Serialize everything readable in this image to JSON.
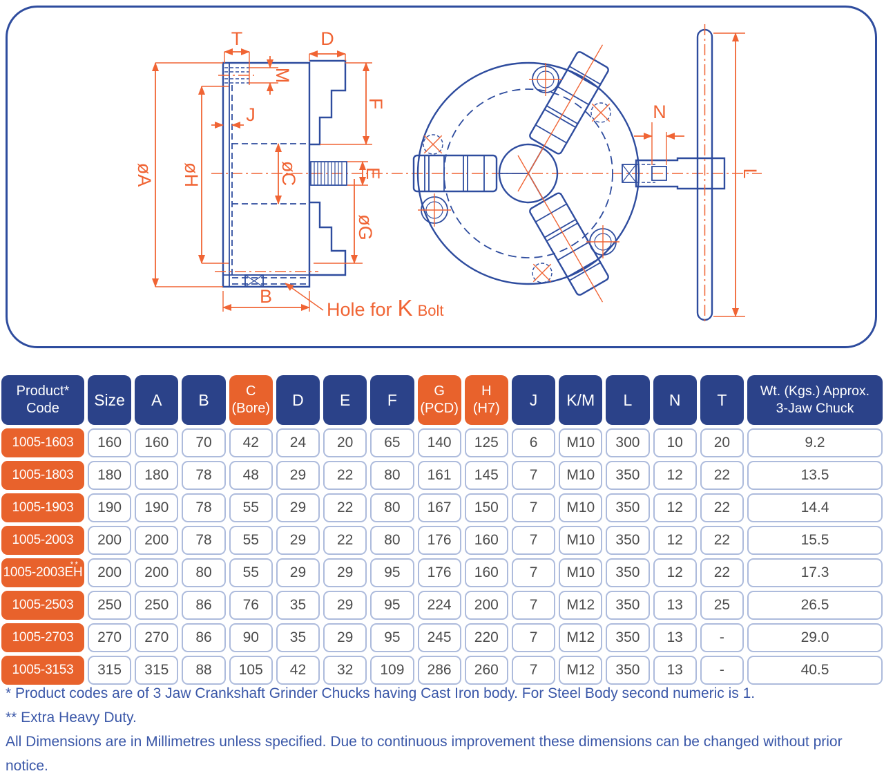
{
  "drawing": {
    "line_color": "#2e4c9e",
    "dimension_color": "#f06434",
    "labels": {
      "t": "T",
      "d": "D",
      "m": "M",
      "f": "F",
      "j": "J",
      "dia_a": "øA",
      "dia_h": "øH",
      "dia_c": "øC",
      "e": "E",
      "dia_g": "øG",
      "b": "B",
      "n": "N",
      "l": "L"
    },
    "annotation": {
      "prefix": "Hole for",
      "bolt_letter": "K",
      "suffix": "Bolt"
    }
  },
  "table": {
    "colors": {
      "header_navy": "#2b4289",
      "accent_orange": "#e8622c",
      "cell_border": "#adbbdc",
      "cell_text": "#4b4b4b"
    },
    "columns": [
      {
        "key": "product-code",
        "lines": [
          "Product*",
          "Code"
        ],
        "accent": false
      },
      {
        "key": "size",
        "lines": [
          "Size"
        ],
        "accent": false
      },
      {
        "key": "a",
        "lines": [
          "A"
        ],
        "accent": false
      },
      {
        "key": "b",
        "lines": [
          "B"
        ],
        "accent": false
      },
      {
        "key": "c-bore",
        "lines": [
          "C",
          "(Bore)"
        ],
        "accent": true
      },
      {
        "key": "d",
        "lines": [
          "D"
        ],
        "accent": false
      },
      {
        "key": "e",
        "lines": [
          "E"
        ],
        "accent": false
      },
      {
        "key": "f",
        "lines": [
          "F"
        ],
        "accent": false
      },
      {
        "key": "g-pcd",
        "lines": [
          "G",
          "(PCD)"
        ],
        "accent": true
      },
      {
        "key": "h-h7",
        "lines": [
          "H",
          "(H7)"
        ],
        "accent": true
      },
      {
        "key": "j",
        "lines": [
          "J"
        ],
        "accent": false
      },
      {
        "key": "k-m",
        "lines": [
          "K/M"
        ],
        "accent": false
      },
      {
        "key": "l",
        "lines": [
          "L"
        ],
        "accent": false
      },
      {
        "key": "n",
        "lines": [
          "N"
        ],
        "accent": false
      },
      {
        "key": "t",
        "lines": [
          "T"
        ],
        "accent": false
      },
      {
        "key": "wt",
        "lines": [
          "Wt. (Kgs.) Approx.",
          "3-Jaw Chuck"
        ],
        "accent": false
      }
    ],
    "rows": [
      {
        "code": "1005-1603",
        "sup": "",
        "values": [
          "160",
          "160",
          "70",
          "42",
          "24",
          "20",
          "65",
          "140",
          "125",
          "6",
          "M10",
          "300",
          "10",
          "20",
          "9.2"
        ]
      },
      {
        "code": "1005-1803",
        "sup": "",
        "values": [
          "180",
          "180",
          "78",
          "48",
          "29",
          "22",
          "80",
          "161",
          "145",
          "7",
          "M10",
          "350",
          "12",
          "22",
          "13.5"
        ]
      },
      {
        "code": "1005-1903",
        "sup": "",
        "values": [
          "190",
          "190",
          "78",
          "55",
          "29",
          "22",
          "80",
          "167",
          "150",
          "7",
          "M10",
          "350",
          "12",
          "22",
          "14.4"
        ]
      },
      {
        "code": "1005-2003",
        "sup": "",
        "values": [
          "200",
          "200",
          "78",
          "55",
          "29",
          "22",
          "80",
          "176",
          "160",
          "7",
          "M10",
          "350",
          "12",
          "22",
          "15.5"
        ]
      },
      {
        "code": "1005-2003EH",
        "sup": "**",
        "values": [
          "200",
          "200",
          "80",
          "55",
          "29",
          "29",
          "95",
          "176",
          "160",
          "7",
          "M10",
          "350",
          "12",
          "22",
          "17.3"
        ]
      },
      {
        "code": "1005-2503",
        "sup": "",
        "values": [
          "250",
          "250",
          "86",
          "76",
          "35",
          "29",
          "95",
          "224",
          "200",
          "7",
          "M12",
          "350",
          "13",
          "25",
          "26.5"
        ]
      },
      {
        "code": "1005-2703",
        "sup": "",
        "values": [
          "270",
          "270",
          "86",
          "90",
          "35",
          "29",
          "95",
          "245",
          "220",
          "7",
          "M12",
          "350",
          "13",
          "-",
          "29.0"
        ]
      },
      {
        "code": "1005-3153",
        "sup": "",
        "values": [
          "315",
          "315",
          "88",
          "105",
          "42",
          "32",
          "109",
          "286",
          "260",
          "7",
          "M12",
          "350",
          "13",
          "-",
          "40.5"
        ]
      }
    ]
  },
  "notes": [
    "* Product codes are of 3 Jaw Crankshaft Grinder Chucks having Cast Iron body. For Steel Body second numeric is 1.",
    "** Extra Heavy Duty.",
    "All Dimensions are in Millimetres unless specified. Due to continuous improvement these dimensions can be changed without prior notice."
  ]
}
